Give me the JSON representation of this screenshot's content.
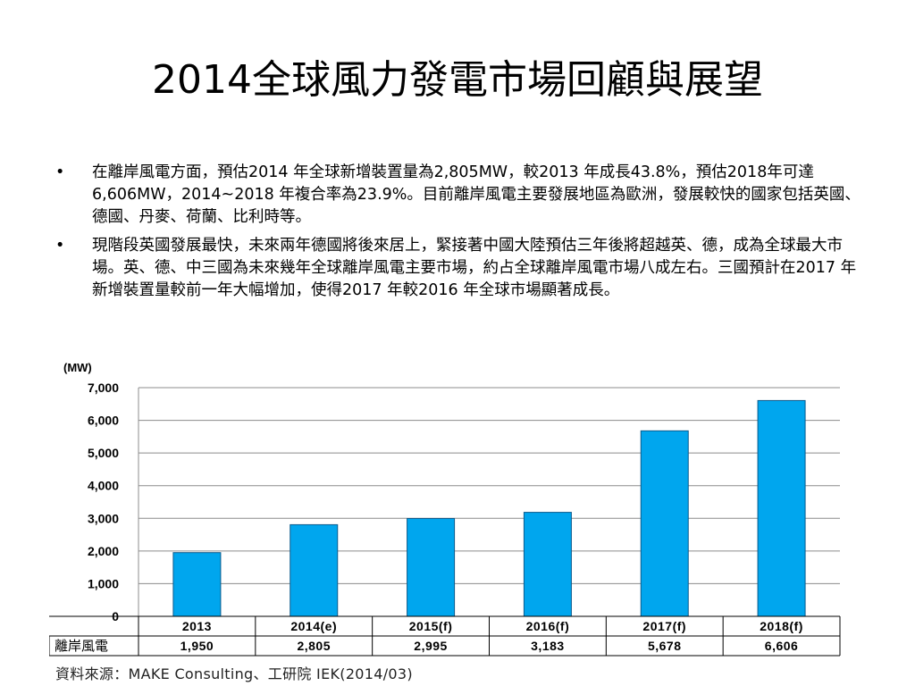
{
  "slide": {
    "title": "2014全球風力發電市場回顧與展望",
    "bullets": [
      "在離岸風電方面，預估2014 年全球新增裝置量為2,805MW，較2013 年成長43.8%，預估2018年可達6,606MW，2014~2018 年複合率為23.9%。目前離岸風電主要發展地區為歐洲，發展較快的國家包括英國、德國、丹麥、荷蘭、比利時等。",
      "現階段英國發展最快，未來兩年德國將後來居上，緊接著中國大陸預估三年後將超越英、德，成為全球最大市場。英、德、中三國為未來幾年全球離岸風電主要市場，約占全球離岸風電市場八成左右。三國預計在2017 年新增裝置量較前一年大幅增加，使得2017 年較2016 年全球市場顯著成長。"
    ],
    "bullet_symbol": "•",
    "source": "資料來源：MAKE Consulting、工研院 IEK(2014/03)"
  },
  "chart_data": {
    "type": "bar",
    "unit_label": "(MW)",
    "categories": [
      "2013",
      "2014(e)",
      "2015(f)",
      "2016(f)",
      "2017(f)",
      "2018(f)"
    ],
    "values": [
      1950,
      2805,
      2995,
      3183,
      5678,
      6606
    ],
    "value_labels": [
      "1,950",
      "2,805",
      "2,995",
      "3,183",
      "5,678",
      "6,606"
    ],
    "table_row_label": "離岸風電",
    "ylim": [
      0,
      7000
    ],
    "yticks": [
      0,
      1000,
      2000,
      3000,
      4000,
      5000,
      6000,
      7000
    ],
    "ytick_labels": [
      "0",
      "1,000",
      "2,000",
      "3,000",
      "4,000",
      "5,000",
      "6,000",
      "7,000"
    ],
    "grid": true,
    "bar_color": "#00A6EE",
    "bar_edge_color": "#0B5A8C"
  }
}
